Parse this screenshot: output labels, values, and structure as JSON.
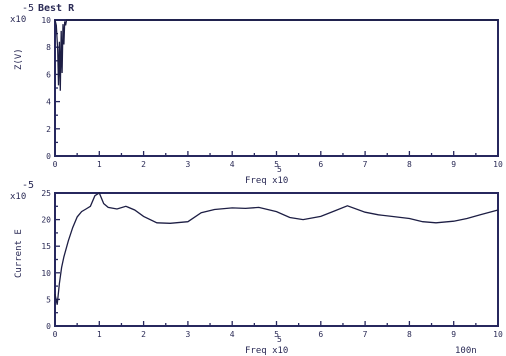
{
  "chart_data": [
    {
      "type": "line",
      "title": "Best R",
      "corner_label": "-5",
      "y_multiplier": "x10",
      "ylabel": "Z(V)",
      "xlabel": "Freq x10",
      "x_exponent": "5",
      "xlim": [
        0,
        10
      ],
      "ylim": [
        0,
        10
      ],
      "xticks": [
        "0",
        "1",
        "2",
        "3",
        "4",
        "5",
        "6",
        "7",
        "8",
        "9",
        "10"
      ],
      "yticks": [
        "0",
        "2",
        "4",
        "6",
        "8",
        "10"
      ],
      "grid": false,
      "series": [
        {
          "x": [
            0,
            0.03,
            0.06,
            0.08,
            0.1,
            0.12,
            0.14,
            0.16,
            0.18,
            0.2,
            0.22,
            0.24,
            0.26,
            0.28,
            0.3,
            0.35,
            0.5,
            1,
            2,
            3,
            4,
            5,
            6,
            7,
            8,
            9,
            10
          ],
          "y": [
            10,
            9.6,
            7.8,
            5.2,
            8.4,
            4.8,
            9.2,
            6.1,
            9.7,
            8.2,
            9.9,
            9.6,
            10,
            10,
            10,
            10,
            10,
            10,
            10,
            10,
            10,
            10,
            10,
            10,
            10,
            10,
            10
          ]
        }
      ]
    },
    {
      "type": "line",
      "corner_label": "-5",
      "y_multiplier": "x10",
      "ylabel": "Current E",
      "xlabel": "Freq x10",
      "x_exponent": "5",
      "footer": "100n",
      "xlim": [
        0,
        10
      ],
      "ylim": [
        0,
        25
      ],
      "xticks": [
        "0",
        "1",
        "2",
        "3",
        "4",
        "5",
        "6",
        "7",
        "8",
        "9",
        "10"
      ],
      "yticks": [
        "0",
        "5",
        "10",
        "15",
        "20",
        "25"
      ],
      "grid": false,
      "series": [
        {
          "x": [
            0,
            0.05,
            0.1,
            0.15,
            0.2,
            0.3,
            0.4,
            0.5,
            0.6,
            0.7,
            0.8,
            0.9,
            1.0,
            1.1,
            1.2,
            1.4,
            1.6,
            1.8,
            2.0,
            2.3,
            2.6,
            3.0,
            3.3,
            3.6,
            4.0,
            4.3,
            4.6,
            5.0,
            5.3,
            5.6,
            6.0,
            6.3,
            6.6,
            7.0,
            7.3,
            7.6,
            8.0,
            8.3,
            8.6,
            9.0,
            9.3,
            9.6,
            10.0
          ],
          "y": [
            6,
            4,
            8,
            11,
            13,
            16,
            18.5,
            20.5,
            21.5,
            22,
            22.5,
            24.5,
            25,
            23,
            22.3,
            22,
            22.5,
            21.8,
            20.6,
            19.4,
            19.3,
            19.6,
            21.3,
            21.9,
            22.2,
            22.1,
            22.3,
            21.5,
            20.4,
            20.0,
            20.6,
            21.6,
            22.6,
            21.4,
            20.9,
            20.6,
            20.2,
            19.6,
            19.4,
            19.7,
            20.2,
            20.9,
            21.8
          ]
        }
      ]
    }
  ]
}
